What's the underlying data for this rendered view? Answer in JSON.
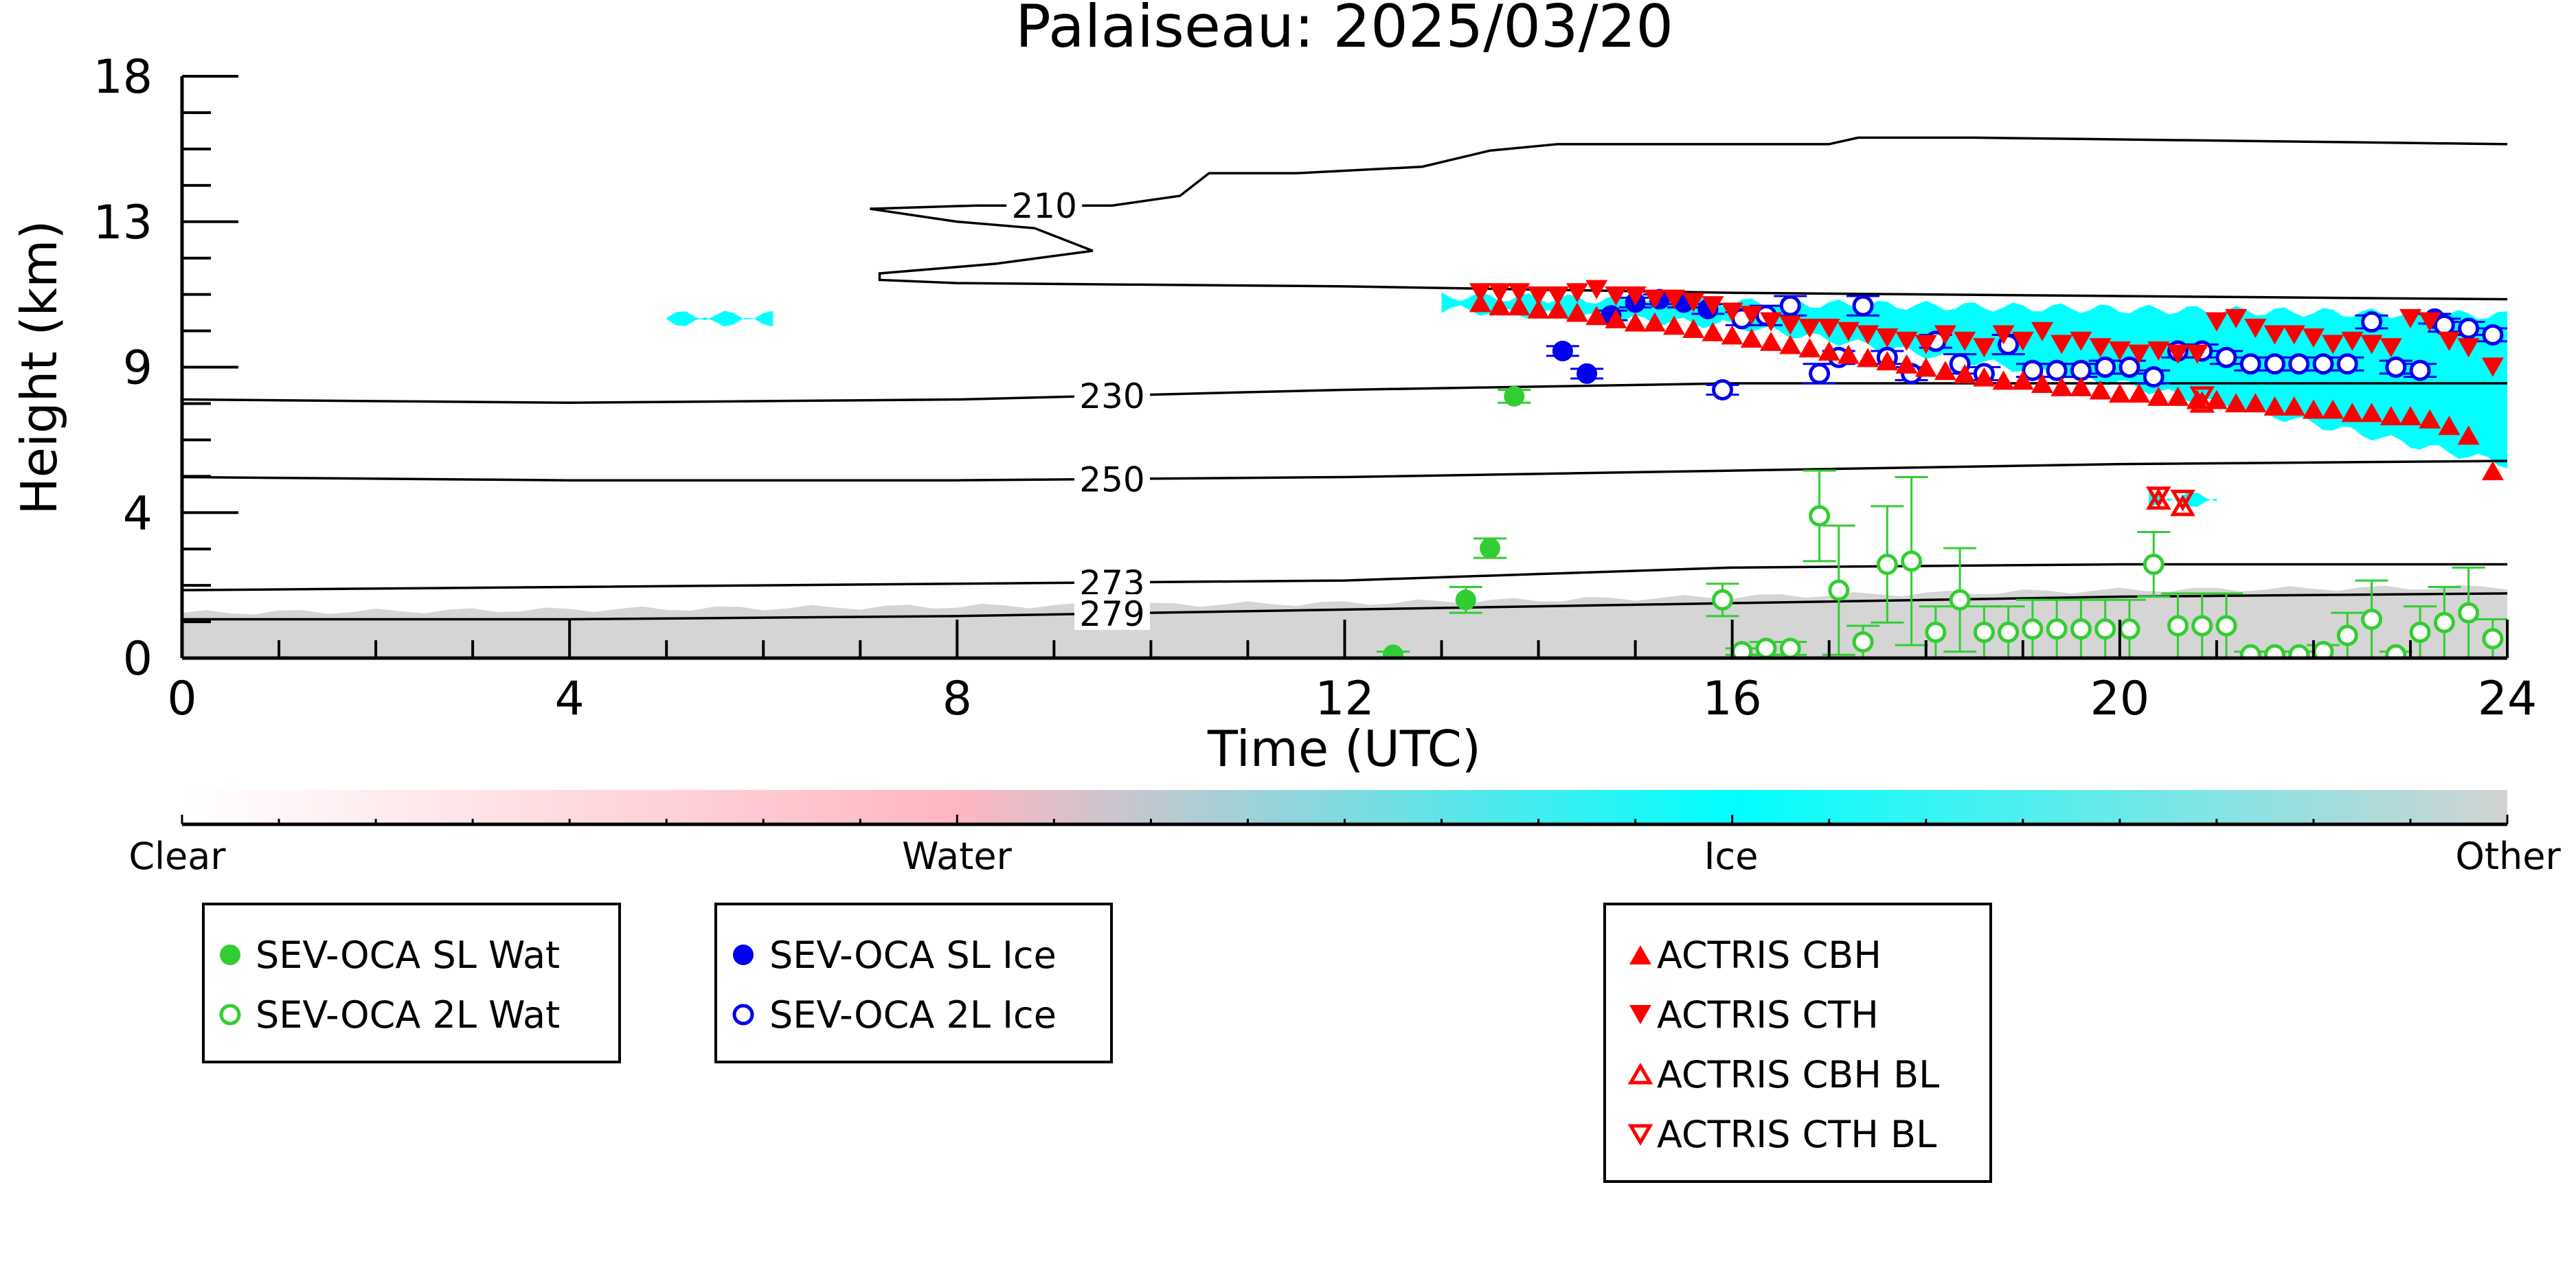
{
  "chart_data": {
    "type": "scatter",
    "title": "Palaiseau: 2025/03/20",
    "xlabel": "Time (UTC)",
    "ylabel": "Height (km)",
    "xlim": [
      0,
      24
    ],
    "ylim": [
      0,
      18
    ],
    "x_ticks": [
      "0",
      "4",
      "8",
      "12",
      "16",
      "20",
      "24"
    ],
    "y_ticks": [
      "0",
      "4",
      "9",
      "13",
      "18"
    ],
    "y_tick_values": [
      0,
      4.5,
      9,
      13.5,
      18
    ],
    "colorbar": {
      "labels": [
        "Clear",
        "Water",
        "Ice",
        "Other"
      ],
      "colors": [
        "#ffffff",
        "#ffb6c1",
        "#00ffff",
        "#d3d3d3"
      ]
    },
    "background_fields": [
      {
        "name": "Low cloud / other",
        "color": "#d3d3d3",
        "top_km": [
          [
            0,
            1.4
          ],
          [
            4,
            1.5
          ],
          [
            8,
            1.6
          ],
          [
            12,
            1.7
          ],
          [
            16,
            1.9
          ],
          [
            20,
            2.1
          ],
          [
            24,
            2.2
          ]
        ]
      },
      {
        "name": "Ice cloud",
        "color": "#00ffff",
        "bands": [
          {
            "x0": 13.0,
            "x1": 24.0,
            "low_km": [
              [
                13,
                10.8
              ],
              [
                16,
                10.3
              ],
              [
                20,
                8.5
              ],
              [
                24,
                6.0
              ]
            ],
            "high_km": [
              [
                13,
                11.2
              ],
              [
                16,
                11.0
              ],
              [
                20,
                10.8
              ],
              [
                24,
                10.6
              ]
            ]
          },
          {
            "x0": 5.0,
            "x1": 6.1,
            "low_km": [
              [
                5,
                10.4
              ],
              [
                6.1,
                10.4
              ]
            ],
            "high_km": [
              [
                5,
                10.6
              ],
              [
                6.1,
                10.6
              ]
            ]
          },
          {
            "x0": 20.3,
            "x1": 21.0,
            "low_km": [
              [
                20.3,
                4.8
              ],
              [
                21,
                4.8
              ]
            ],
            "high_km": [
              [
                20.3,
                5.0
              ],
              [
                21,
                5.0
              ]
            ]
          }
        ]
      }
    ],
    "contours": [
      {
        "label": "210",
        "label_x": 8.9,
        "points": [
          [
            7.1,
            13.9
          ],
          [
            8.2,
            14.0
          ],
          [
            9.6,
            14.0
          ],
          [
            10.3,
            14.3
          ],
          [
            10.6,
            15.0
          ],
          [
            11.5,
            15.0
          ],
          [
            12.8,
            15.2
          ],
          [
            13.5,
            15.7
          ],
          [
            14.2,
            15.9
          ],
          [
            16.5,
            15.9
          ],
          [
            17.0,
            15.9
          ],
          [
            17.3,
            16.1
          ],
          [
            18.5,
            16.1
          ],
          [
            24,
            15.9
          ]
        ]
      },
      {
        "label": "",
        "label_x": null,
        "points": [
          [
            7.1,
            13.9
          ],
          [
            8.0,
            13.5
          ],
          [
            8.8,
            13.3
          ],
          [
            9.4,
            12.6
          ],
          [
            8.4,
            12.2
          ],
          [
            7.2,
            11.9
          ],
          [
            7.2,
            11.7
          ],
          [
            8.0,
            11.6
          ],
          [
            12,
            11.5
          ],
          [
            16,
            11.3
          ],
          [
            20,
            11.2
          ],
          [
            24,
            11.1
          ]
        ]
      },
      {
        "label": "230",
        "label_x": 9.6,
        "points": [
          [
            0,
            8.0
          ],
          [
            4,
            7.9
          ],
          [
            8,
            8.0
          ],
          [
            12,
            8.3
          ],
          [
            16,
            8.5
          ],
          [
            20,
            8.5
          ],
          [
            24,
            8.5
          ]
        ]
      },
      {
        "label": "250",
        "label_x": 9.6,
        "points": [
          [
            0,
            5.6
          ],
          [
            4,
            5.5
          ],
          [
            8,
            5.5
          ],
          [
            12,
            5.6
          ],
          [
            16,
            5.8
          ],
          [
            20,
            6.0
          ],
          [
            24,
            6.1
          ]
        ]
      },
      {
        "label": "273",
        "label_x": 9.6,
        "points": [
          [
            0,
            2.1
          ],
          [
            4,
            2.2
          ],
          [
            8,
            2.3
          ],
          [
            12,
            2.4
          ],
          [
            14,
            2.6
          ],
          [
            16,
            2.8
          ],
          [
            20,
            2.9
          ],
          [
            24,
            2.9
          ]
        ]
      },
      {
        "label": "279",
        "label_x": 9.6,
        "points": [
          [
            0,
            1.2
          ],
          [
            4,
            1.2
          ],
          [
            8,
            1.3
          ],
          [
            12,
            1.5
          ],
          [
            16,
            1.7
          ],
          [
            20,
            1.9
          ],
          [
            24,
            2.0
          ]
        ]
      }
    ],
    "legends": [
      {
        "entries": [
          {
            "label": "SEV-OCA SL Wat",
            "color": "#32cd32",
            "marker": "circle-filled"
          },
          {
            "label": "SEV-OCA 2L Wat",
            "color": "#32cd32",
            "marker": "circle-open"
          }
        ]
      },
      {
        "entries": [
          {
            "label": "SEV-OCA SL Ice",
            "color": "#0000ee",
            "marker": "circle-filled"
          },
          {
            "label": "SEV-OCA 2L Ice",
            "color": "#0000ee",
            "marker": "circle-open"
          }
        ]
      },
      {
        "entries": [
          {
            "label": "ACTRIS CBH",
            "color": "#ff0000",
            "marker": "triangle-up-filled"
          },
          {
            "label": "ACTRIS CTH",
            "color": "#ff0000",
            "marker": "triangle-down-filled"
          },
          {
            "label": "ACTRIS CBH BL",
            "color": "#ff0000",
            "marker": "triangle-up-open"
          },
          {
            "label": "ACTRIS CTH BL",
            "color": "#ff0000",
            "marker": "triangle-down-open"
          }
        ]
      }
    ],
    "series": [
      {
        "name": "SEV-OCA SL Wat",
        "color": "#32cd32",
        "marker": "circle-filled",
        "x": [
          12.5,
          13.25,
          13.5,
          13.75
        ],
        "y": [
          0.1,
          1.8,
          3.4,
          8.1
        ],
        "err": [
          0.1,
          0.4,
          0.3,
          0.2
        ]
      },
      {
        "name": "SEV-OCA 2L Wat",
        "color": "#32cd32",
        "marker": "circle-open",
        "x": [
          15.9,
          16.1,
          16.35,
          16.6,
          16.9,
          17.1,
          17.35,
          17.6,
          17.85,
          18.1,
          18.35,
          18.6,
          18.85,
          19.1,
          19.35,
          19.6,
          19.85,
          20.1,
          20.35,
          20.6,
          20.85,
          21.1,
          21.35,
          21.6,
          21.85,
          22.1,
          22.35,
          22.6,
          22.85,
          23.1,
          23.35,
          23.6,
          23.85
        ],
        "y": [
          1.8,
          0.2,
          0.3,
          0.3,
          4.4,
          2.1,
          0.5,
          2.9,
          3.0,
          0.8,
          1.8,
          0.8,
          0.8,
          0.9,
          0.9,
          0.9,
          0.9,
          0.9,
          2.9,
          1.0,
          1.0,
          1.0,
          0.1,
          0.1,
          0.1,
          0.2,
          0.7,
          1.2,
          0.1,
          0.8,
          1.1,
          1.4,
          0.6
        ],
        "err": [
          0.5,
          0.1,
          0.2,
          0.2,
          1.4,
          2.0,
          0.5,
          1.8,
          2.6,
          0.8,
          1.6,
          0.8,
          0.8,
          0.9,
          0.9,
          0.9,
          0.9,
          0.9,
          1.0,
          1.0,
          1.0,
          1.0,
          0.1,
          0.1,
          0.1,
          0.2,
          0.7,
          1.2,
          0.1,
          0.8,
          1.1,
          1.4,
          0.6
        ]
      },
      {
        "name": "SEV-OCA SL Ice",
        "color": "#0000ee",
        "marker": "circle-filled",
        "x": [
          14.25,
          14.5,
          14.75,
          15.0,
          15.25,
          15.5,
          15.75,
          23.25
        ],
        "y": [
          9.5,
          8.8,
          10.6,
          11.0,
          11.1,
          11.0,
          10.8,
          10.5
        ],
        "err": [
          0.15,
          0.15,
          0.15,
          0.15,
          0.15,
          0.15,
          0.15,
          0.15
        ]
      },
      {
        "name": "SEV-OCA 2L Ice",
        "color": "#0000ee",
        "marker": "circle-open",
        "x": [
          15.9,
          16.1,
          16.35,
          16.6,
          16.9,
          17.1,
          17.35,
          17.6,
          17.85,
          18.1,
          18.35,
          18.6,
          18.85,
          19.1,
          19.35,
          19.6,
          19.85,
          20.1,
          20.35,
          20.6,
          20.85,
          21.1,
          21.35,
          21.6,
          21.85,
          22.1,
          22.35,
          22.6,
          22.85,
          23.1,
          23.35,
          23.6,
          23.85
        ],
        "y": [
          8.3,
          10.5,
          10.6,
          10.9,
          8.8,
          9.3,
          10.9,
          9.3,
          8.8,
          9.8,
          9.1,
          8.8,
          9.7,
          8.9,
          8.9,
          8.9,
          9.0,
          9.0,
          8.7,
          9.5,
          9.5,
          9.3,
          9.1,
          9.1,
          9.1,
          9.1,
          9.1,
          10.4,
          9.0,
          8.9,
          10.3,
          10.2,
          10.0
        ],
        "err": [
          0.15,
          0.2,
          0.3,
          0.3,
          0.3,
          0.2,
          0.3,
          0.2,
          0.2,
          0.2,
          0.3,
          0.2,
          0.3,
          0.2,
          0.2,
          0.2,
          0.2,
          0.2,
          0.2,
          0.2,
          0.2,
          0.2,
          0.2,
          0.2,
          0.2,
          0.2,
          0.2,
          0.2,
          0.2,
          0.2,
          0.2,
          0.2,
          0.2
        ]
      },
      {
        "name": "ACTRIS CBH",
        "color": "#ff0000",
        "marker": "triangle-up-filled",
        "x": [
          13.4,
          13.6,
          13.8,
          14.0,
          14.2,
          14.4,
          14.6,
          14.8,
          15.0,
          15.2,
          15.4,
          15.6,
          15.8,
          16.0,
          16.2,
          16.4,
          16.6,
          16.8,
          17.0,
          17.2,
          17.4,
          17.6,
          17.8,
          18.0,
          18.2,
          18.4,
          18.6,
          18.8,
          19.0,
          19.2,
          19.4,
          19.6,
          19.8,
          20.0,
          20.2,
          20.4,
          20.6,
          20.8,
          21.0,
          21.2,
          21.4,
          21.6,
          21.8,
          22.0,
          22.2,
          22.4,
          22.6,
          22.8,
          23.0,
          23.2,
          23.4,
          23.6,
          23.85
        ],
        "y": [
          11.0,
          10.9,
          10.9,
          10.8,
          10.8,
          10.7,
          10.6,
          10.5,
          10.4,
          10.4,
          10.3,
          10.2,
          10.1,
          10.0,
          9.9,
          9.8,
          9.7,
          9.6,
          9.5,
          9.4,
          9.3,
          9.2,
          9.1,
          9.0,
          8.9,
          8.8,
          8.7,
          8.6,
          8.6,
          8.5,
          8.4,
          8.4,
          8.3,
          8.2,
          8.2,
          8.1,
          8.1,
          8.0,
          8.0,
          7.9,
          7.9,
          7.8,
          7.8,
          7.7,
          7.7,
          7.6,
          7.6,
          7.5,
          7.5,
          7.4,
          7.2,
          6.9,
          5.8
        ]
      },
      {
        "name": "ACTRIS CTH",
        "color": "#ff0000",
        "marker": "triangle-down-filled",
        "x": [
          13.4,
          13.6,
          13.8,
          14.0,
          14.2,
          14.4,
          14.6,
          14.8,
          15.0,
          15.2,
          15.4,
          15.6,
          15.8,
          16.0,
          16.2,
          16.4,
          16.6,
          16.8,
          17.0,
          17.2,
          17.4,
          17.6,
          17.8,
          18.0,
          18.2,
          18.4,
          18.6,
          18.8,
          19.0,
          19.2,
          19.4,
          19.6,
          19.8,
          20.0,
          20.2,
          20.4,
          20.6,
          20.8,
          21.0,
          21.2,
          21.4,
          21.6,
          21.8,
          22.0,
          22.2,
          22.4,
          22.6,
          22.8,
          23.0,
          23.2,
          23.4,
          23.6,
          23.85
        ],
        "y": [
          11.3,
          11.3,
          11.3,
          11.2,
          11.2,
          11.3,
          11.4,
          11.2,
          11.2,
          11.1,
          11.1,
          11.0,
          10.9,
          10.7,
          10.6,
          10.4,
          10.3,
          10.2,
          10.2,
          10.1,
          10.0,
          9.9,
          9.8,
          9.7,
          10.0,
          9.8,
          9.6,
          10.0,
          9.8,
          10.1,
          9.7,
          9.8,
          9.6,
          9.5,
          9.4,
          9.5,
          9.4,
          9.4,
          10.4,
          10.5,
          10.2,
          10.0,
          10.0,
          9.9,
          9.7,
          9.8,
          9.7,
          9.6,
          10.5,
          10.4,
          9.8,
          9.6,
          9.0
        ]
      },
      {
        "name": "ACTRIS CBH BL",
        "color": "#ff0000",
        "marker": "triangle-up-open",
        "x": [
          20.4,
          20.65,
          20.85
        ],
        "y": [
          4.9,
          4.7,
          7.9
        ]
      },
      {
        "name": "ACTRIS CTH BL",
        "color": "#ff0000",
        "marker": "triangle-down-open",
        "x": [
          20.4,
          20.65,
          20.85
        ],
        "y": [
          5.0,
          4.9,
          8.1
        ]
      }
    ]
  }
}
